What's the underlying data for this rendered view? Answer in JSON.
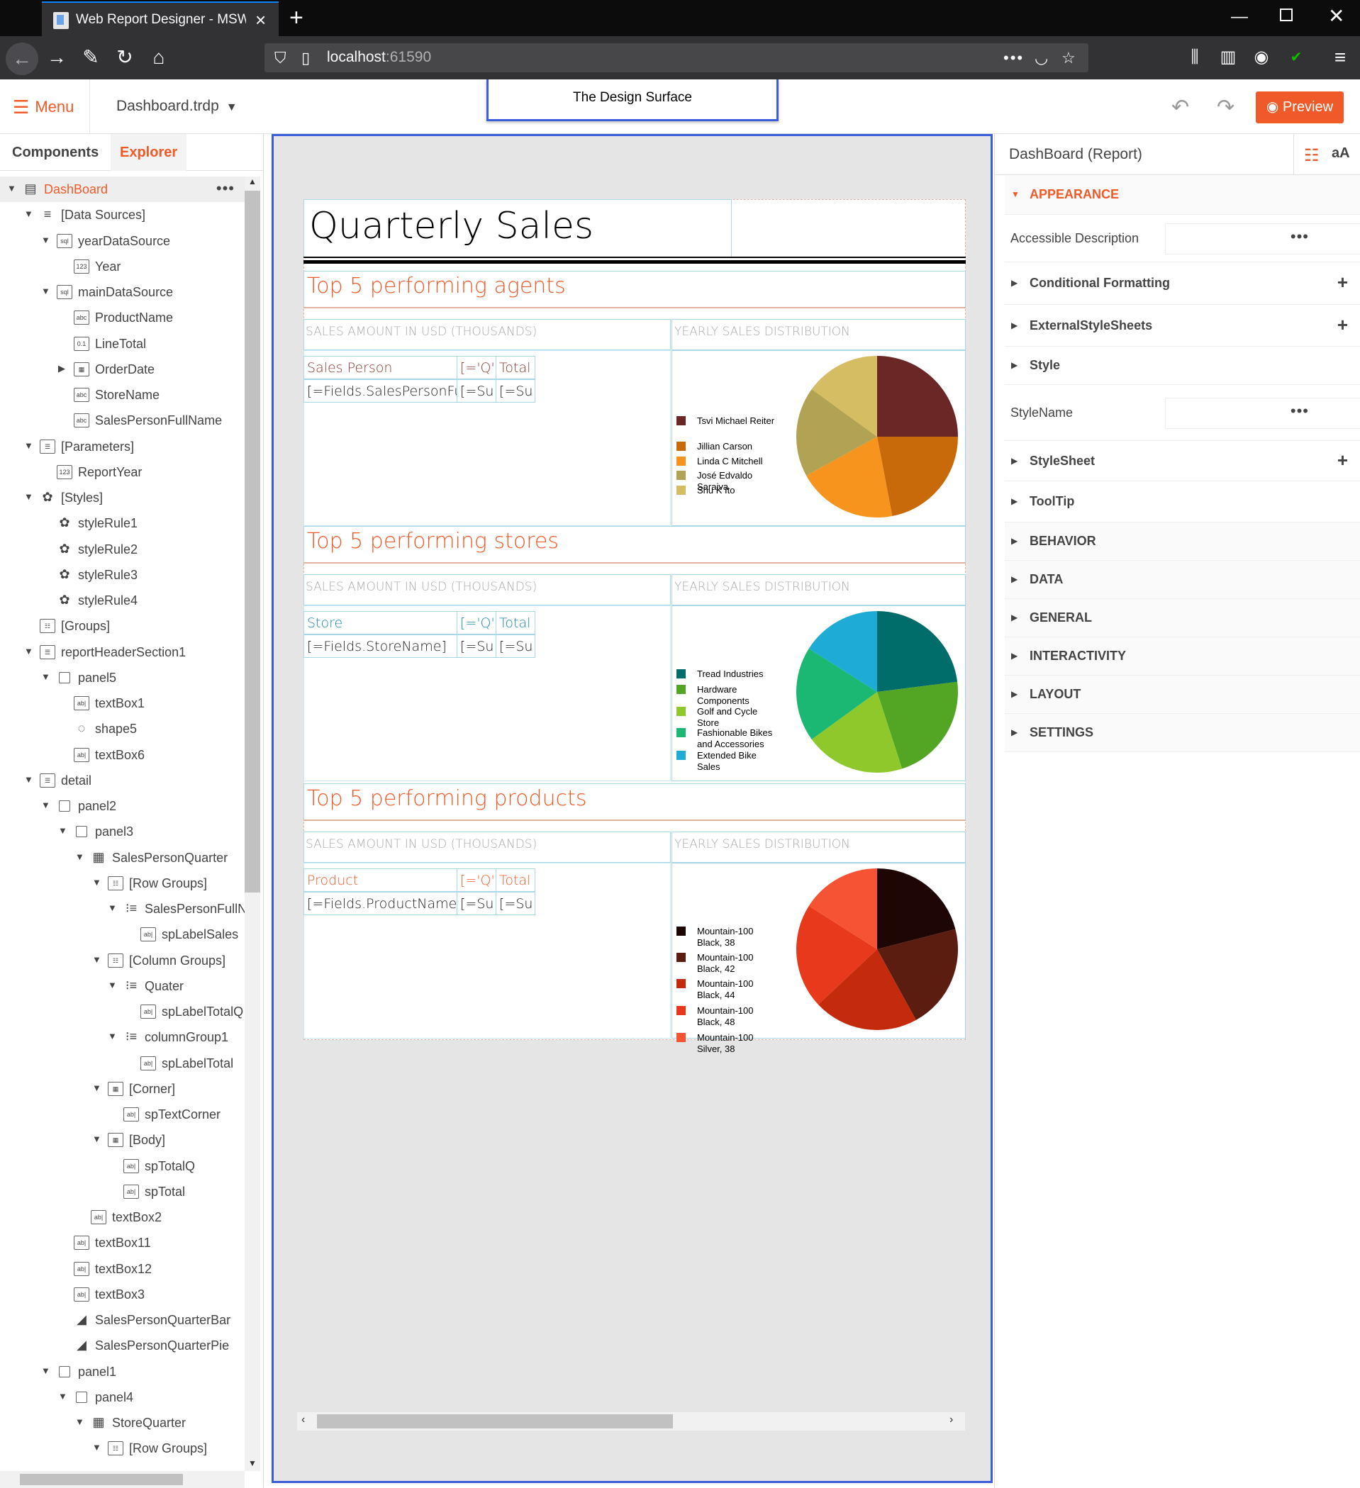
{
  "browser": {
    "tab_title": "Web Report Designer - MSWA...",
    "url_host": "localhost",
    "url_port": ":61590"
  },
  "header": {
    "menu_label": "Menu",
    "doc_name": "Dashboard.trdp",
    "design_surface_label": "The Design Surface",
    "preview_label": "Preview"
  },
  "left_tabs": {
    "components": "Components",
    "explorer": "Explorer"
  },
  "tree": [
    {
      "label": "DashBoard",
      "level": 0,
      "tog": "▼",
      "icon": "report-icon",
      "glyph": "▤",
      "selected": true
    },
    {
      "label": "[Data Sources]",
      "level": 1,
      "tog": "▼",
      "icon": "database-icon",
      "glyph": "≡"
    },
    {
      "label": "yearDataSource",
      "level": 2,
      "tog": "▼",
      "icon": "sql-datasource-icon",
      "glyph": "sql"
    },
    {
      "label": "Year",
      "level": 3,
      "tog": "",
      "icon": "number-field-icon",
      "glyph": "123"
    },
    {
      "label": "mainDataSource",
      "level": 2,
      "tog": "▼",
      "icon": "sql-datasource-icon",
      "glyph": "sql"
    },
    {
      "label": "ProductName",
      "level": 3,
      "tog": "",
      "icon": "text-field-icon",
      "glyph": "abc"
    },
    {
      "label": "LineTotal",
      "level": 3,
      "tog": "",
      "icon": "decimal-field-icon",
      "glyph": "0.1"
    },
    {
      "label": "OrderDate",
      "level": 3,
      "tog": "▶",
      "icon": "date-field-icon",
      "glyph": "▦"
    },
    {
      "label": "StoreName",
      "level": 3,
      "tog": "",
      "icon": "text-field-icon",
      "glyph": "abc"
    },
    {
      "label": "SalesPersonFullName",
      "level": 3,
      "tog": "",
      "icon": "text-field-icon",
      "glyph": "abc"
    },
    {
      "label": "[Parameters]",
      "level": 1,
      "tog": "▼",
      "icon": "parameters-icon",
      "glyph": "☰"
    },
    {
      "label": "ReportYear",
      "level": 2,
      "tog": "",
      "icon": "number-field-icon",
      "glyph": "123"
    },
    {
      "label": "[Styles]",
      "level": 1,
      "tog": "▼",
      "icon": "palette-icon",
      "glyph": "✿"
    },
    {
      "label": "styleRule1",
      "level": 2,
      "tog": "",
      "icon": "palette-icon",
      "glyph": "✿"
    },
    {
      "label": "styleRule2",
      "level": 2,
      "tog": "",
      "icon": "palette-icon",
      "glyph": "✿"
    },
    {
      "label": "styleRule3",
      "level": 2,
      "tog": "",
      "icon": "palette-icon",
      "glyph": "✿"
    },
    {
      "label": "styleRule4",
      "level": 2,
      "tog": "",
      "icon": "palette-icon",
      "glyph": "✿"
    },
    {
      "label": "[Groups]",
      "level": 1,
      "tog": "",
      "icon": "groups-icon",
      "glyph": "☷"
    },
    {
      "label": "reportHeaderSection1",
      "level": 1,
      "tog": "▼",
      "icon": "section-icon",
      "glyph": "☰"
    },
    {
      "label": "panel5",
      "level": 2,
      "tog": "▼",
      "icon": "panel-icon",
      "glyph": ""
    },
    {
      "label": "textBox1",
      "level": 3,
      "tog": "",
      "icon": "textbox-icon",
      "glyph": "ab|"
    },
    {
      "label": "shape5",
      "level": 3,
      "tog": "",
      "icon": "shape-icon",
      "glyph": "◌"
    },
    {
      "label": "textBox6",
      "level": 3,
      "tog": "",
      "icon": "textbox-icon",
      "glyph": "ab|"
    },
    {
      "label": "detail",
      "level": 1,
      "tog": "▼",
      "icon": "section-icon",
      "glyph": "☰"
    },
    {
      "label": "panel2",
      "level": 2,
      "tog": "▼",
      "icon": "panel-icon",
      "glyph": ""
    },
    {
      "label": "panel3",
      "level": 3,
      "tog": "▼",
      "icon": "panel-icon",
      "glyph": ""
    },
    {
      "label": "SalesPersonQuarter",
      "level": 4,
      "tog": "▼",
      "icon": "crosstab-icon",
      "glyph": "▦"
    },
    {
      "label": "[Row Groups]",
      "level": 5,
      "tog": "▼",
      "icon": "groups-icon",
      "glyph": "☷"
    },
    {
      "label": "SalesPersonFullN",
      "level": 6,
      "tog": "▼",
      "icon": "group-icon",
      "glyph": "⁝≡"
    },
    {
      "label": "spLabelSales",
      "level": 7,
      "tog": "",
      "icon": "textbox-icon",
      "glyph": "ab|"
    },
    {
      "label": "[Column Groups]",
      "level": 5,
      "tog": "▼",
      "icon": "groups-icon",
      "glyph": "☷"
    },
    {
      "label": "Quater",
      "level": 6,
      "tog": "▼",
      "icon": "group-icon",
      "glyph": "⁝≡"
    },
    {
      "label": "spLabelTotalQ",
      "level": 7,
      "tog": "",
      "icon": "textbox-icon",
      "glyph": "ab|"
    },
    {
      "label": "columnGroup1",
      "level": 6,
      "tog": "▼",
      "icon": "group-icon",
      "glyph": "⁝≡"
    },
    {
      "label": "spLabelTotal",
      "level": 7,
      "tog": "",
      "icon": "textbox-icon",
      "glyph": "ab|"
    },
    {
      "label": "[Corner]",
      "level": 5,
      "tog": "▼",
      "icon": "corner-icon",
      "glyph": "▦"
    },
    {
      "label": "spTextCorner",
      "level": 6,
      "tog": "",
      "icon": "textbox-icon",
      "glyph": "ab|"
    },
    {
      "label": "[Body]",
      "level": 5,
      "tog": "▼",
      "icon": "body-icon",
      "glyph": "▦"
    },
    {
      "label": "spTotalQ",
      "level": 6,
      "tog": "",
      "icon": "textbox-icon",
      "glyph": "ab|"
    },
    {
      "label": "spTotal",
      "level": 6,
      "tog": "",
      "icon": "textbox-icon",
      "glyph": "ab|"
    },
    {
      "label": "textBox2",
      "level": 4,
      "tog": "",
      "icon": "textbox-icon",
      "glyph": "ab|"
    },
    {
      "label": "textBox11",
      "level": 3,
      "tog": "",
      "icon": "textbox-icon",
      "glyph": "ab|"
    },
    {
      "label": "textBox12",
      "level": 3,
      "tog": "",
      "icon": "textbox-icon",
      "glyph": "ab|"
    },
    {
      "label": "textBox3",
      "level": 3,
      "tog": "",
      "icon": "textbox-icon",
      "glyph": "ab|"
    },
    {
      "label": "SalesPersonQuarterBar",
      "level": 3,
      "tog": "",
      "icon": "chart-icon",
      "glyph": "◢"
    },
    {
      "label": "SalesPersonQuarterPie",
      "level": 3,
      "tog": "",
      "icon": "chart-icon",
      "glyph": "◢"
    },
    {
      "label": "panel1",
      "level": 2,
      "tog": "▼",
      "icon": "panel-icon",
      "glyph": ""
    },
    {
      "label": "panel4",
      "level": 3,
      "tog": "▼",
      "icon": "panel-icon",
      "glyph": ""
    },
    {
      "label": "StoreQuarter",
      "level": 4,
      "tog": "▼",
      "icon": "crosstab-icon",
      "glyph": "▦"
    },
    {
      "label": "[Row Groups]",
      "level": 5,
      "tog": "▼",
      "icon": "groups-icon",
      "glyph": "☷"
    }
  ],
  "report": {
    "title": "Quarterly Sales",
    "sections": [
      {
        "title": "Top 5 performing agents",
        "sub_left": "SALES AMOUNT IN USD (THOUSANDS)",
        "sub_right": "YEARLY SALES DISTRIBUTION",
        "col_header": "Sales Person",
        "col_q": "[='Q'",
        "col_total": "Total",
        "row_field": "[=Fields.SalesPersonFull",
        "row_q": "[=Su",
        "row_total": "[=Su",
        "header_color": "#8b3a2f",
        "legend": [
          "Tsvi Michael Reiter",
          "Jillian  Carson",
          "Linda C Mitchell",
          "José Edvaldo Saraiva",
          "Shu K Ito"
        ],
        "slices": [
          {
            "value": 25,
            "color": "#6b2726"
          },
          {
            "value": 22,
            "color": "#c96a0a"
          },
          {
            "value": 20,
            "color": "#f7941e"
          },
          {
            "value": 18,
            "color": "#b2a254"
          },
          {
            "value": 15,
            "color": "#d4bd62"
          }
        ]
      },
      {
        "title": "Top 5 performing stores",
        "sub_left": "SALES AMOUNT IN USD (THOUSANDS)",
        "sub_right": "YEARLY SALES DISTRIBUTION",
        "col_header": "Store",
        "col_q": "[='Q'",
        "col_total": "Total",
        "row_field": "[=Fields.StoreName]",
        "row_q": "[=Su",
        "row_total": "[=Su",
        "header_color": "#1b8aa6",
        "legend": [
          "Tread Industries",
          "Hardware Components",
          "Golf and Cycle Store",
          "Fashionable Bikes and Accessories",
          "Extended Bike Sales"
        ],
        "slices": [
          {
            "value": 23,
            "color": "#006d6a"
          },
          {
            "value": 22,
            "color": "#53a623"
          },
          {
            "value": 20,
            "color": "#8fc82b"
          },
          {
            "value": 19,
            "color": "#1bb873"
          },
          {
            "value": 16,
            "color": "#1eabd6"
          }
        ]
      },
      {
        "title": "Top 5 performing products",
        "sub_left": "SALES AMOUNT IN USD (THOUSANDS)",
        "sub_right": "YEARLY SALES DISTRIBUTION",
        "col_header": "Product",
        "col_q": "[='Q'",
        "col_total": "Total",
        "row_field": "[=Fields.ProductName]",
        "row_q": "[=Su",
        "row_total": "[=Su",
        "header_color": "#f05a28",
        "legend": [
          "Mountain-100 Black, 38",
          "Mountain-100 Black, 42",
          "Mountain-100 Black, 44",
          "Mountain-100 Black, 48",
          "Mountain-100 Silver, 38"
        ],
        "slices": [
          {
            "value": 21,
            "color": "#1e0604"
          },
          {
            "value": 21,
            "color": "#5a1d10"
          },
          {
            "value": 21,
            "color": "#c42a0c"
          },
          {
            "value": 21,
            "color": "#e8391d"
          },
          {
            "value": 16,
            "color": "#f65334"
          }
        ]
      }
    ]
  },
  "props": {
    "title": "DashBoard (Report)",
    "font_icon": "aA",
    "rows": [
      {
        "type": "cat",
        "label": "APPEARANCE",
        "open": true,
        "accent": true
      },
      {
        "type": "value",
        "label": "Accessible Description"
      },
      {
        "type": "expand",
        "label": "Conditional Formatting",
        "plus": true
      },
      {
        "type": "expand",
        "label": "ExternalStyleSheets",
        "plus": true
      },
      {
        "type": "expand",
        "label": "Style"
      },
      {
        "type": "value",
        "label": "StyleName"
      },
      {
        "type": "expand",
        "label": "StyleSheet",
        "plus": true
      },
      {
        "type": "expand",
        "label": "ToolTip"
      },
      {
        "type": "cat",
        "label": "BEHAVIOR"
      },
      {
        "type": "cat",
        "label": "DATA"
      },
      {
        "type": "cat",
        "label": "GENERAL"
      },
      {
        "type": "cat",
        "label": "INTERACTIVITY"
      },
      {
        "type": "cat",
        "label": "LAYOUT"
      },
      {
        "type": "cat",
        "label": "SETTINGS"
      }
    ]
  },
  "colors": {
    "accent": "#f05a28",
    "selection_border": "#3b5bdb"
  }
}
